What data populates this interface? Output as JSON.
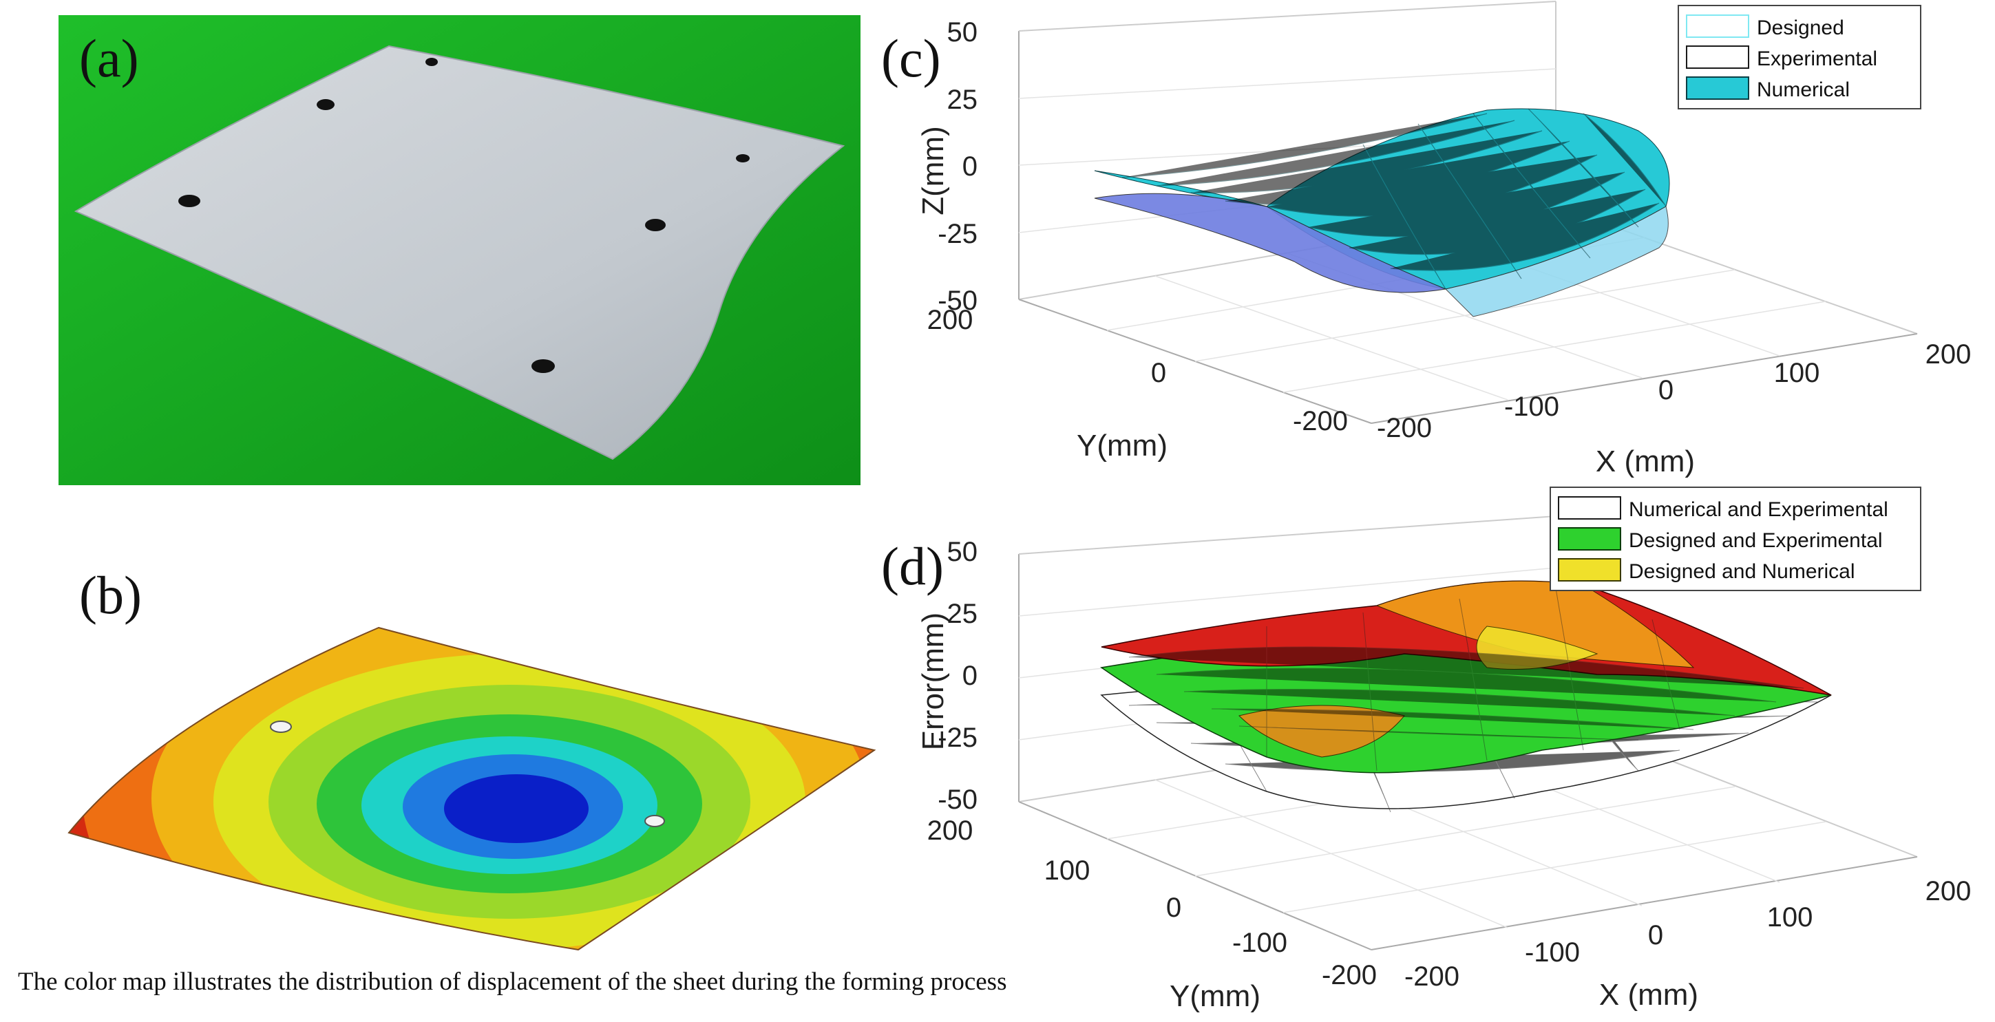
{
  "figure": {
    "panel_labels": {
      "a": "(a)",
      "b": "(b)",
      "c": "(c)",
      "d": "(d)"
    },
    "caption": "The color map illustrates the distribution of displacement of the sheet during the forming process"
  },
  "colors": {
    "photo_background": "#14a81c",
    "sheet": "#c9ced3",
    "designed": "#7fe8f2",
    "experimental": "#1a1a1a",
    "numerical": "#27c9d6",
    "numerical_and_experimental": "#ffffff",
    "designed_and_experimental": "#2ed12e",
    "designed_and_numerical": "#f0e02a",
    "error_surface_warm": "#d8201a"
  },
  "chart_data": [
    {
      "panel": "(c)",
      "type": "surface3d",
      "zlabel": "Z(mm)",
      "xlabel": "X (mm)",
      "ylabel": "Y(mm)",
      "zticks": [
        "50",
        "25",
        "0",
        "-25",
        "-50"
      ],
      "xticks": [
        "-200",
        "-100",
        "0",
        "100",
        "200"
      ],
      "yticks": [
        "200",
        "0",
        "-200"
      ],
      "zlim": [
        -50,
        50
      ],
      "xlim": [
        -200,
        200
      ],
      "ylim": [
        -200,
        200
      ],
      "legend_position": "top-right",
      "series": [
        {
          "name": "Designed",
          "style": "wireframe"
        },
        {
          "name": "Experimental",
          "style": "wireframe"
        },
        {
          "name": "Numerical",
          "style": "surface"
        }
      ]
    },
    {
      "panel": "(d)",
      "type": "surface3d",
      "zlabel": "Error(mm)",
      "xlabel": "X (mm)",
      "ylabel": "Y(mm)",
      "zticks": [
        "50",
        "25",
        "0",
        "-25",
        "-50"
      ],
      "xticks": [
        "-200",
        "-100",
        "0",
        "100",
        "200"
      ],
      "yticks": [
        "200",
        "100",
        "0",
        "-100",
        "-200"
      ],
      "zlim": [
        -50,
        50
      ],
      "xlim": [
        -200,
        200
      ],
      "ylim": [
        -200,
        200
      ],
      "legend_position": "top-right",
      "series": [
        {
          "name": "Numerical and Experimental",
          "style": "wireframe"
        },
        {
          "name": "Designed and Experimental",
          "style": "surface"
        },
        {
          "name": "Designed and Numerical",
          "style": "surface"
        }
      ]
    }
  ]
}
